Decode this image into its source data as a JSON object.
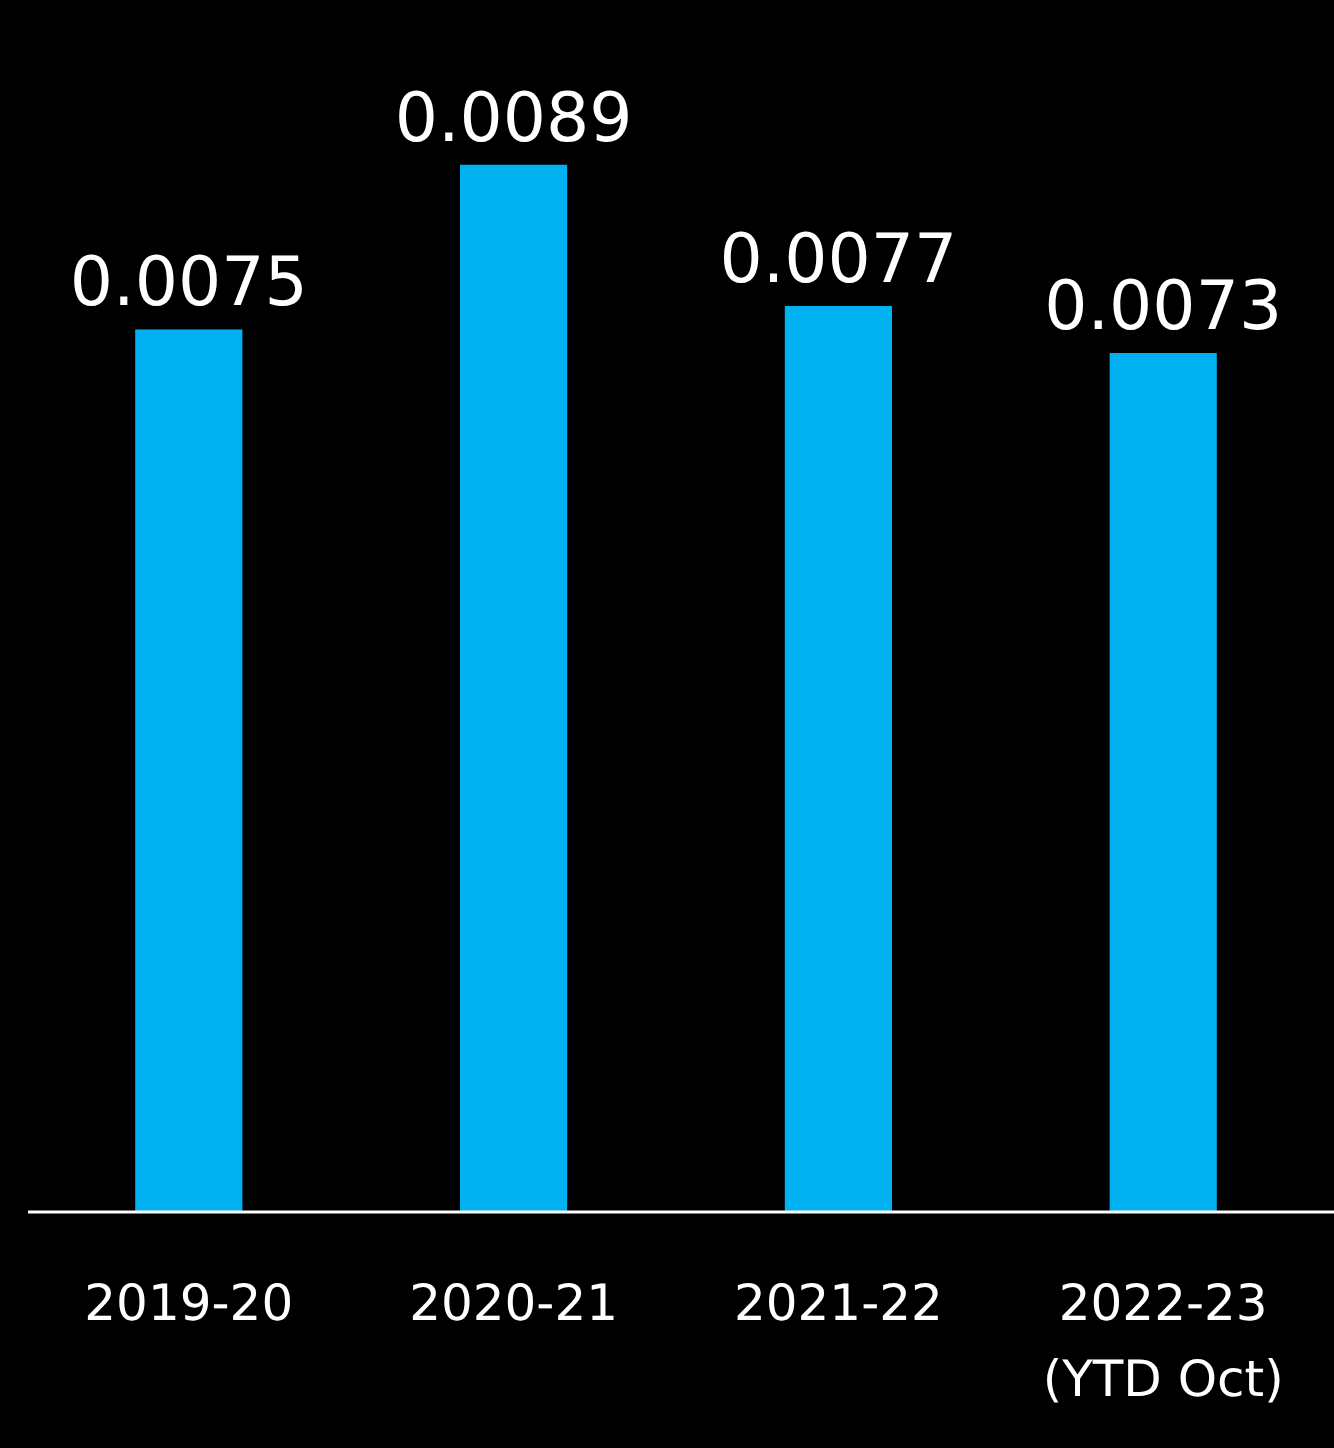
{
  "chart_data": {
    "type": "bar",
    "categories": [
      "2019-20",
      "2020-21",
      "2021-22",
      "2022-23\n(YTD Oct)"
    ],
    "values": [
      0.0075,
      0.0089,
      0.0077,
      0.0073
    ],
    "color": "#00b0f0",
    "ylim": [
      0,
      0.0103
    ],
    "data_labels": true,
    "tick_labels": "x"
  }
}
